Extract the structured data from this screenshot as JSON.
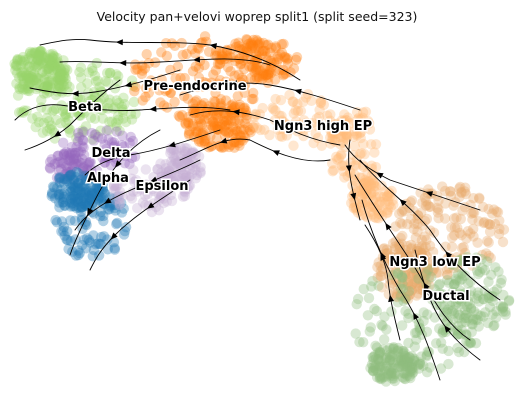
{
  "chart_data": {
    "type": "scatter",
    "title": "Velocity pan+velovi woprep split1 (split seed=323)",
    "xlabel": "",
    "ylabel": "",
    "grid": false,
    "embedding": "umap",
    "colors": {
      "Alpha": "#1f77b4",
      "Beta": "#98d46a",
      "Delta": "#9467bd",
      "Epsilon": "#c5b0d5",
      "Pre-endocrine": "#ff7f0e",
      "Ngn3 high EP": "#ffbb78",
      "Ngn3 low EP": "#e8a86a",
      "Ductal": "#8fbc7f"
    },
    "clusters": [
      {
        "name": "Beta",
        "label": "Beta"
      },
      {
        "name": "Pre-endocrine",
        "label": "Pre-endocrine"
      },
      {
        "name": "Ngn3 high EP",
        "label": "Ngn3 high EP"
      },
      {
        "name": "Delta",
        "label": "Delta"
      },
      {
        "name": "Alpha",
        "label": "Alpha"
      },
      {
        "name": "Epsilon",
        "label": "Epsilon"
      },
      {
        "name": "Ngn3 low EP",
        "label": "Ngn3 low EP"
      },
      {
        "name": "Ductal",
        "label": "Ductal"
      }
    ],
    "velocity_direction": "Ductal → Ngn3 low EP → Ngn3 high EP → Pre-endocrine → Alpha / Beta / Delta / Epsilon"
  }
}
